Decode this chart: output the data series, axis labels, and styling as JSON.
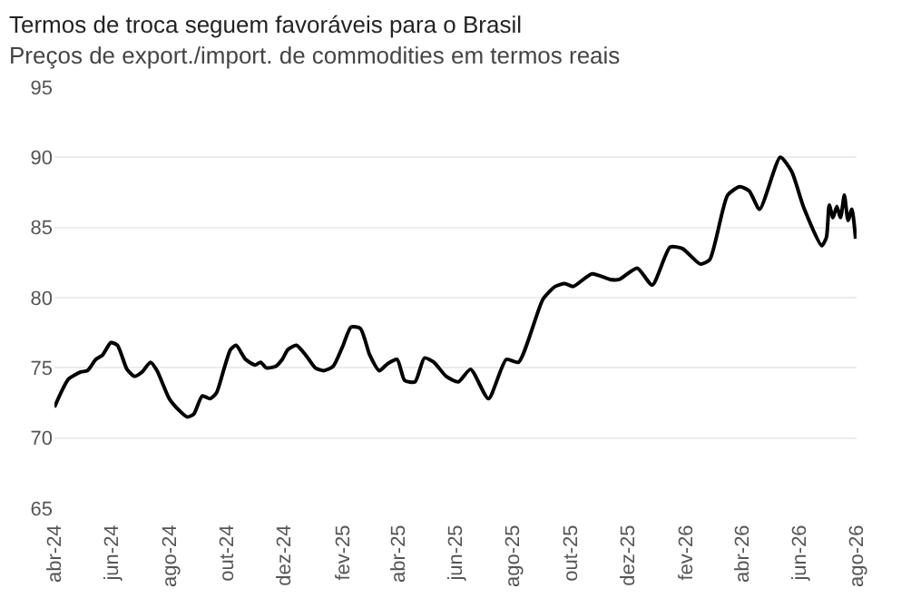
{
  "chart_data": {
    "type": "line",
    "title": "Termos de troca seguem favoráveis para o Brasil",
    "subtitle": "Preços de export./import. de commodities em termos reais",
    "x": [
      "2024-04-01",
      "2024-04-16",
      "2024-04-29",
      "2024-05-06",
      "2024-05-15",
      "2024-05-22",
      "2024-05-31",
      "2024-06-07",
      "2024-06-17",
      "2024-06-25",
      "2024-07-03",
      "2024-07-12",
      "2024-07-19",
      "2024-08-01",
      "2024-08-11",
      "2024-08-20",
      "2024-08-27",
      "2024-09-05",
      "2024-09-13",
      "2024-09-20",
      "2024-09-28",
      "2024-10-05",
      "2024-10-11",
      "2024-10-21",
      "2024-10-31",
      "2024-11-06",
      "2024-11-12",
      "2024-11-22",
      "2024-11-29",
      "2024-12-05",
      "2024-12-14",
      "2024-12-24",
      "2025-01-03",
      "2025-01-12",
      "2025-01-22",
      "2025-02-01",
      "2025-02-10",
      "2025-02-20",
      "2025-03-02",
      "2025-03-12",
      "2025-03-21",
      "2025-03-31",
      "2025-04-08",
      "2025-04-19",
      "2025-04-29",
      "2025-05-09",
      "2025-05-22",
      "2025-06-04",
      "2025-06-17",
      "2025-07-06",
      "2025-07-25",
      "2025-08-07",
      "2025-09-02",
      "2025-09-15",
      "2025-09-25",
      "2025-10-04",
      "2025-10-24",
      "2025-11-12",
      "2025-11-22",
      "2025-12-11",
      "2025-12-27",
      "2026-01-15",
      "2026-01-28",
      "2026-02-16",
      "2026-02-26",
      "2026-03-17",
      "2026-03-30",
      "2026-04-09",
      "2026-04-20",
      "2026-05-12",
      "2026-05-24",
      "2026-06-06",
      "2026-06-25",
      "2026-06-30",
      "2026-07-03",
      "2026-07-07",
      "2026-07-11",
      "2026-07-15",
      "2026-07-19",
      "2026-07-23",
      "2026-07-27",
      "2026-07-31"
    ],
    "series": [
      {
        "color": "#000000",
        "values": [
          72.2,
          74.2,
          74.7,
          74.8,
          75.6,
          75.9,
          76.8,
          76.6,
          74.9,
          74.4,
          74.7,
          75.4,
          74.8,
          72.8,
          72.0,
          71.5,
          71.7,
          73.0,
          72.8,
          73.2,
          74.9,
          76.3,
          76.6,
          75.6,
          75.2,
          75.4,
          75.0,
          75.1,
          75.6,
          76.3,
          76.6,
          75.9,
          75.0,
          74.8,
          75.1,
          76.5,
          77.9,
          77.8,
          75.9,
          74.8,
          75.3,
          75.6,
          74.1,
          74.0,
          75.7,
          75.4,
          74.4,
          74.0,
          74.9,
          72.8,
          75.6,
          75.4,
          79.9,
          80.8,
          81.0,
          80.8,
          81.7,
          81.3,
          81.3,
          82.1,
          80.9,
          83.6,
          83.5,
          82.4,
          82.7,
          87.3,
          87.9,
          87.6,
          86.3,
          90.0,
          89.0,
          86.4,
          83.7,
          84.3,
          86.6,
          85.7,
          86.5,
          85.7,
          87.3,
          85.5,
          86.3,
          84.2
        ]
      }
    ],
    "xlim": [
      "2024-04-01",
      "2026-08-01"
    ],
    "xticks": [
      {
        "value": "2024-04-01",
        "label": "abr-24"
      },
      {
        "value": "2024-06-01",
        "label": "jun-24"
      },
      {
        "value": "2024-08-01",
        "label": "ago-24"
      },
      {
        "value": "2024-10-01",
        "label": "out-24"
      },
      {
        "value": "2024-12-01",
        "label": "dez-24"
      },
      {
        "value": "2025-02-01",
        "label": "fev-25"
      },
      {
        "value": "2025-04-01",
        "label": "abr-25"
      },
      {
        "value": "2025-06-01",
        "label": "jun-25"
      },
      {
        "value": "2025-08-01",
        "label": "ago-25"
      },
      {
        "value": "2025-10-01",
        "label": "out-25"
      },
      {
        "value": "2025-12-01",
        "label": "dez-25"
      },
      {
        "value": "2026-02-01",
        "label": "fev-26"
      },
      {
        "value": "2026-04-01",
        "label": "abr-26"
      },
      {
        "value": "2026-06-01",
        "label": "jun-26"
      },
      {
        "value": "2026-08-01",
        "label": "ago-26"
      }
    ],
    "ylim": [
      65,
      95
    ],
    "yticks": [
      65,
      70,
      75,
      80,
      85,
      90,
      95
    ],
    "grid": "y",
    "line_style": "solid"
  }
}
